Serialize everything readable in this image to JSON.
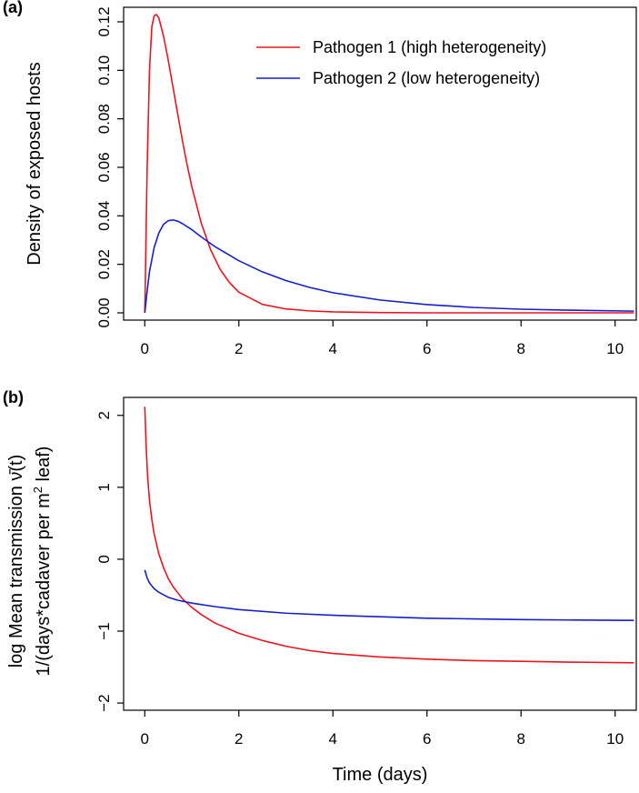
{
  "chart_data": [
    {
      "type": "line",
      "panel_label": "(a)",
      "xlabel": "",
      "ylabel": "Density of exposed hosts",
      "xlim": [
        -0.45,
        10.45
      ],
      "ylim": [
        -0.003,
        0.126
      ],
      "xticks": [
        0,
        2,
        4,
        6,
        8,
        10
      ],
      "yticks": [
        0.0,
        0.02,
        0.04,
        0.06,
        0.08,
        0.1,
        0.12
      ],
      "ytick_labels": [
        "0.00",
        "0.02",
        "0.04",
        "0.06",
        "0.08",
        "0.10",
        "0.12"
      ],
      "grid": false,
      "legend_position": "top-right",
      "colors": {
        "pathogen1": "#e8161d",
        "pathogen2": "#1420c8"
      },
      "series": [
        {
          "name": "Pathogen 1 (high heterogeneity)",
          "color": "#e8161d",
          "x": [
            0,
            0.05,
            0.1,
            0.15,
            0.2,
            0.25,
            0.3,
            0.4,
            0.5,
            0.6,
            0.7,
            0.8,
            0.9,
            1.0,
            1.2,
            1.4,
            1.6,
            1.8,
            2.0,
            2.5,
            3.0,
            3.5,
            4.0,
            5.0,
            6.0,
            8.0,
            10.4
          ],
          "y": [
            0.0,
            0.06,
            0.1,
            0.118,
            0.1225,
            0.123,
            0.1215,
            0.114,
            0.104,
            0.093,
            0.082,
            0.071,
            0.061,
            0.052,
            0.037,
            0.026,
            0.018,
            0.0125,
            0.0085,
            0.0035,
            0.0016,
            0.0008,
            0.0004,
            0.0001,
            0.0,
            0.0,
            0.0
          ]
        },
        {
          "name": "Pathogen 2 (low heterogeneity)",
          "color": "#1420c8",
          "x": [
            0,
            0.05,
            0.1,
            0.2,
            0.3,
            0.4,
            0.5,
            0.6,
            0.7,
            0.8,
            1.0,
            1.2,
            1.5,
            2.0,
            2.5,
            3.0,
            3.5,
            4.0,
            5.0,
            6.0,
            7.0,
            8.0,
            9.0,
            10.4
          ],
          "y": [
            0.0,
            0.009,
            0.017,
            0.027,
            0.033,
            0.0365,
            0.038,
            0.0383,
            0.0378,
            0.0368,
            0.0343,
            0.0313,
            0.0272,
            0.0215,
            0.0169,
            0.0133,
            0.0105,
            0.0083,
            0.0053,
            0.0034,
            0.0022,
            0.0015,
            0.0011,
            0.0007
          ]
        }
      ]
    },
    {
      "type": "line",
      "panel_label": "(b)",
      "xlabel": "Time (days)",
      "ylabel_line1": "log Mean transmission ν̄(t)",
      "ylabel_line2_a": "1/(days*cadaver per m",
      "ylabel_line2_sup": "2",
      "ylabel_line2_b": " leaf)",
      "xlim": [
        -0.45,
        10.45
      ],
      "ylim": [
        -2.1,
        2.25
      ],
      "xticks": [
        0,
        2,
        4,
        6,
        8,
        10
      ],
      "yticks": [
        -2,
        -1,
        0,
        1,
        2
      ],
      "ytick_labels": [
        "−2",
        "−1",
        "0",
        "1",
        "2"
      ],
      "grid": false,
      "series": [
        {
          "name": "Pathogen 1 (high heterogeneity)",
          "color": "#e8161d",
          "x": [
            0,
            0.03,
            0.06,
            0.1,
            0.15,
            0.2,
            0.3,
            0.4,
            0.5,
            0.6,
            0.8,
            1.0,
            1.2,
            1.5,
            2.0,
            2.5,
            3.0,
            3.5,
            4.0,
            5.0,
            6.0,
            7.0,
            8.0,
            9.0,
            10.4
          ],
          "y": [
            2.12,
            1.55,
            1.15,
            0.82,
            0.55,
            0.35,
            0.07,
            -0.12,
            -0.27,
            -0.38,
            -0.55,
            -0.67,
            -0.77,
            -0.89,
            -1.03,
            -1.13,
            -1.21,
            -1.27,
            -1.31,
            -1.36,
            -1.39,
            -1.41,
            -1.42,
            -1.43,
            -1.44
          ]
        },
        {
          "name": "Pathogen 2 (low heterogeneity)",
          "color": "#1420c8",
          "x": [
            0,
            0.05,
            0.1,
            0.2,
            0.3,
            0.5,
            0.7,
            1.0,
            1.5,
            2.0,
            3.0,
            4.0,
            5.0,
            6.0,
            7.0,
            8.0,
            9.0,
            10.4
          ],
          "y": [
            -0.15,
            -0.26,
            -0.33,
            -0.41,
            -0.46,
            -0.53,
            -0.57,
            -0.61,
            -0.66,
            -0.7,
            -0.75,
            -0.78,
            -0.8,
            -0.82,
            -0.83,
            -0.84,
            -0.845,
            -0.85
          ]
        }
      ]
    }
  ]
}
